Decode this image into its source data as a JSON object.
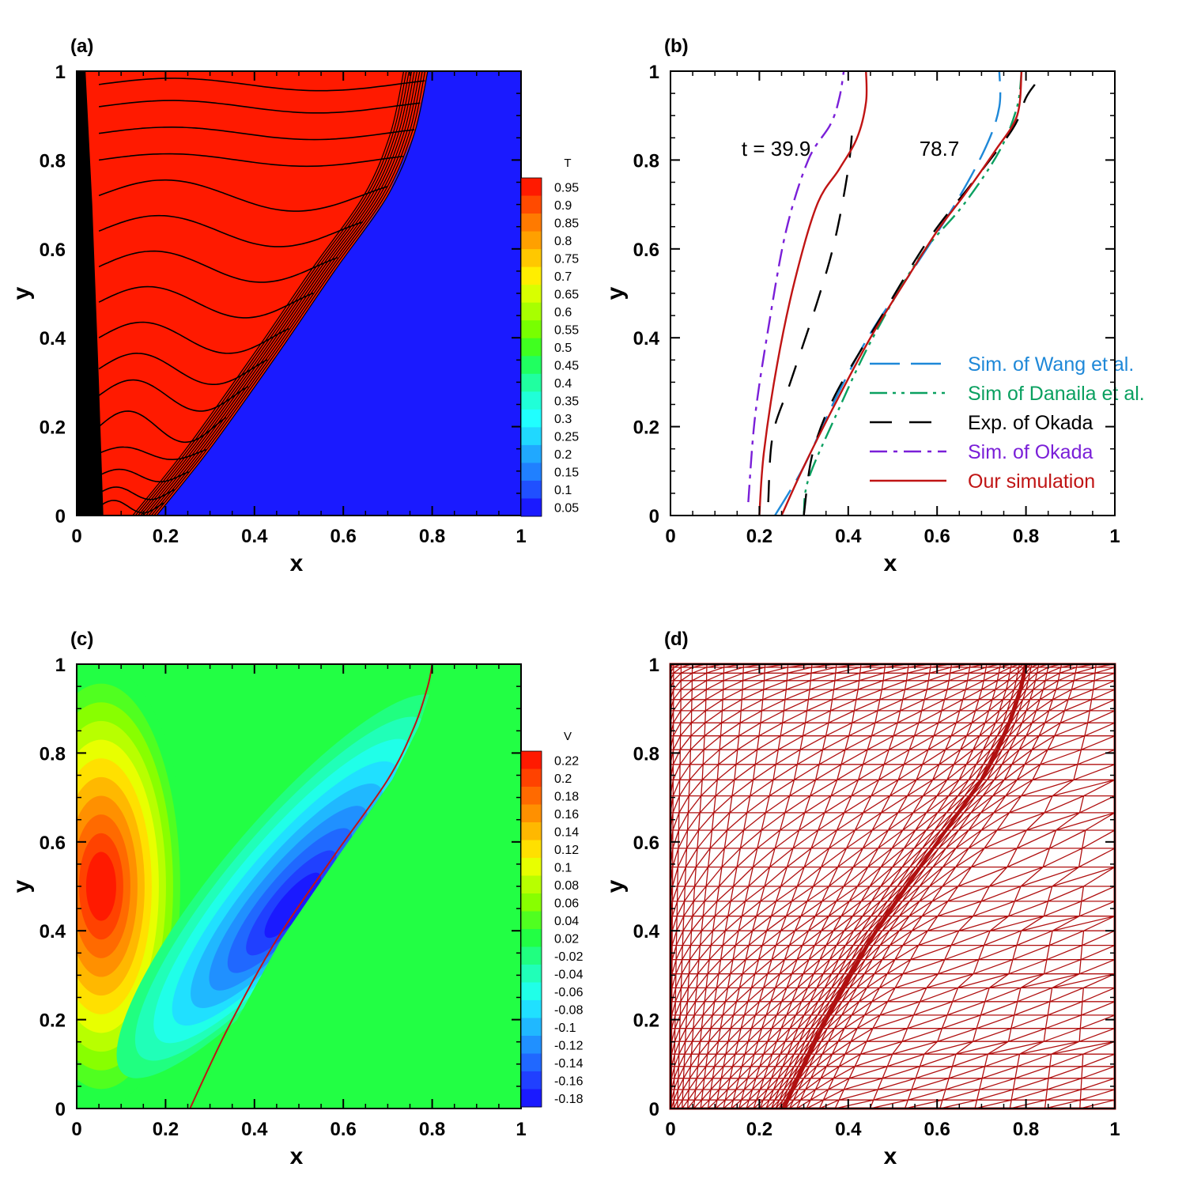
{
  "colors": {
    "wang": "#1e88d8",
    "danaila": "#0aa060",
    "okada_exp": "#000000",
    "okada_sim": "#7a1fd8",
    "ours": "#c01414",
    "mesh": "#b01010",
    "solid_blue": "#1a1aff",
    "field_green": "#22ff44"
  },
  "chart_data": [
    {
      "id": "a",
      "label": "(a)",
      "type": "heatmap",
      "xlabel": "x",
      "ylabel": "y",
      "xlim": [
        0,
        1
      ],
      "ylim": [
        0,
        1
      ],
      "xticks": [
        "0",
        "0.2",
        "0.4",
        "0.6",
        "0.8",
        "1"
      ],
      "yticks": [
        "0",
        "0.2",
        "0.4",
        "0.6",
        "0.8",
        "1"
      ],
      "colorbar": {
        "title": "T",
        "levels": [
          "0.95",
          "0.9",
          "0.85",
          "0.8",
          "0.75",
          "0.7",
          "0.65",
          "0.6",
          "0.55",
          "0.5",
          "0.45",
          "0.4",
          "0.35",
          "0.3",
          "0.25",
          "0.2",
          "0.15",
          "0.1",
          "0.05"
        ],
        "colors": [
          "#ff1a00",
          "#ff4a00",
          "#ff7a00",
          "#ffa000",
          "#ffc800",
          "#ffee00",
          "#d8ff00",
          "#a8ff00",
          "#78ff00",
          "#40ff20",
          "#20ff60",
          "#20ffa0",
          "#20ffd8",
          "#20ffff",
          "#20d8ff",
          "#20a8ff",
          "#2080ff",
          "#2050ff",
          "#1a1aff"
        ]
      },
      "melt_front": [
        [
          0.18,
          0
        ],
        [
          0.3,
          0.15
        ],
        [
          0.45,
          0.36
        ],
        [
          0.58,
          0.55
        ],
        [
          0.7,
          0.72
        ],
        [
          0.76,
          0.86
        ],
        [
          0.79,
          1
        ]
      ],
      "isotherm_heights": [
        0.02,
        0.05,
        0.09,
        0.14,
        0.2,
        0.27,
        0.33,
        0.4,
        0.48,
        0.56,
        0.64,
        0.72,
        0.8,
        0.86,
        0.92,
        0.97
      ]
    },
    {
      "id": "b",
      "label": "(b)",
      "type": "line",
      "xlabel": "x",
      "ylabel": "y",
      "xlim": [
        0,
        1
      ],
      "ylim": [
        0,
        1
      ],
      "xticks": [
        "0",
        "0.2",
        "0.4",
        "0.6",
        "0.8",
        "1"
      ],
      "yticks": [
        "0",
        "0.2",
        "0.4",
        "0.6",
        "0.8",
        "1"
      ],
      "annotations": [
        {
          "text": "t = 39.9",
          "x": 0.16,
          "y": 0.81
        },
        {
          "text": "78.7",
          "x": 0.56,
          "y": 0.81
        }
      ],
      "legend": {
        "position": "bottom-right"
      },
      "series": [
        {
          "name": "Sim. of Wang et al.",
          "style": "wang",
          "curves": [
            [
              [
                0.235,
                0
              ],
              [
                0.3,
                0.11
              ],
              [
                0.37,
                0.26
              ],
              [
                0.45,
                0.41
              ],
              [
                0.55,
                0.56
              ],
              [
                0.64,
                0.7
              ],
              [
                0.71,
                0.83
              ],
              [
                0.74,
                0.92
              ],
              [
                0.74,
                1
              ]
            ]
          ]
        },
        {
          "name": "Sim of Danaila et al.",
          "style": "danaila",
          "curves": [
            [
              [
                0.3,
                0
              ],
              [
                0.31,
                0.08
              ],
              [
                0.37,
                0.22
              ],
              [
                0.45,
                0.39
              ],
              [
                0.56,
                0.58
              ],
              [
                0.66,
                0.7
              ],
              [
                0.74,
                0.82
              ],
              [
                0.78,
                0.92
              ],
              [
                0.79,
                1
              ]
            ]
          ]
        },
        {
          "name": "Exp. of Okada",
          "style": "okada_exp",
          "curves": [
            [
              [
                0.22,
                0.03
              ],
              [
                0.23,
                0.18
              ],
              [
                0.27,
                0.3
              ],
              [
                0.33,
                0.48
              ],
              [
                0.37,
                0.62
              ],
              [
                0.4,
                0.78
              ],
              [
                0.41,
                0.88
              ]
            ],
            [
              [
                0.3,
                0
              ],
              [
                0.32,
                0.14
              ],
              [
                0.37,
                0.27
              ],
              [
                0.47,
                0.44
              ],
              [
                0.58,
                0.62
              ],
              [
                0.68,
                0.75
              ],
              [
                0.77,
                0.87
              ],
              [
                0.8,
                0.94
              ],
              [
                0.82,
                0.97
              ]
            ]
          ]
        },
        {
          "name": "Sim. of Okada",
          "style": "okada_sim",
          "curves": [
            [
              [
                0.175,
                0.03
              ],
              [
                0.19,
                0.22
              ],
              [
                0.22,
                0.42
              ],
              [
                0.26,
                0.64
              ],
              [
                0.31,
                0.8
              ],
              [
                0.36,
                0.88
              ],
              [
                0.38,
                0.94
              ],
              [
                0.39,
                1
              ]
            ]
          ]
        },
        {
          "name": "Our simulation",
          "style": "ours",
          "curves": [
            [
              [
                0.2,
                0
              ],
              [
                0.21,
                0.14
              ],
              [
                0.24,
                0.34
              ],
              [
                0.28,
                0.53
              ],
              [
                0.33,
                0.7
              ],
              [
                0.38,
                0.78
              ],
              [
                0.42,
                0.85
              ],
              [
                0.44,
                0.93
              ],
              [
                0.44,
                1
              ]
            ],
            [
              [
                0.25,
                0
              ],
              [
                0.3,
                0.11
              ],
              [
                0.37,
                0.25
              ],
              [
                0.45,
                0.4
              ],
              [
                0.53,
                0.53
              ],
              [
                0.6,
                0.64
              ],
              [
                0.66,
                0.72
              ],
              [
                0.73,
                0.82
              ],
              [
                0.78,
                0.9
              ],
              [
                0.79,
                1
              ]
            ]
          ]
        }
      ]
    },
    {
      "id": "c",
      "label": "(c)",
      "type": "heatmap",
      "xlabel": "x",
      "ylabel": "y",
      "xlim": [
        0,
        1
      ],
      "ylim": [
        0,
        1
      ],
      "xticks": [
        "0",
        "0.2",
        "0.4",
        "0.6",
        "0.8",
        "1"
      ],
      "yticks": [
        "0",
        "0.2",
        "0.4",
        "0.6",
        "0.8",
        "1"
      ],
      "colorbar": {
        "title": "V",
        "levels": [
          "0.22",
          "0.2",
          "0.18",
          "0.16",
          "0.14",
          "0.12",
          "0.1",
          "0.08",
          "0.06",
          "0.04",
          "0.02",
          "-0.02",
          "-0.04",
          "-0.06",
          "-0.08",
          "-0.1",
          "-0.12",
          "-0.14",
          "-0.16",
          "-0.18"
        ],
        "colors": [
          "#ff1a00",
          "#ff4200",
          "#ff6a00",
          "#ff9000",
          "#ffb800",
          "#ffe000",
          "#e8ff00",
          "#b8ff00",
          "#88ff00",
          "#50ff20",
          "#22ff44",
          "#20ff80",
          "#20ffb8",
          "#20ffe8",
          "#20e0ff",
          "#20b8ff",
          "#2090ff",
          "#2068ff",
          "#2040ff",
          "#1a1aff"
        ]
      },
      "melt_front": [
        [
          0.255,
          0
        ],
        [
          0.34,
          0.18
        ],
        [
          0.45,
          0.38
        ],
        [
          0.58,
          0.57
        ],
        [
          0.7,
          0.74
        ],
        [
          0.76,
          0.86
        ],
        [
          0.79,
          0.95
        ],
        [
          0.8,
          1
        ]
      ]
    },
    {
      "id": "d",
      "label": "(d)",
      "type": "mesh",
      "xlabel": "x",
      "ylabel": "y",
      "xlim": [
        0,
        1
      ],
      "ylim": [
        0,
        1
      ],
      "xticks": [
        "0",
        "0.2",
        "0.4",
        "0.6",
        "0.8",
        "1"
      ],
      "yticks": [
        "0",
        "0.2",
        "0.4",
        "0.6",
        "0.8",
        "1"
      ],
      "melt_front": [
        [
          0.255,
          0
        ],
        [
          0.34,
          0.18
        ],
        [
          0.45,
          0.38
        ],
        [
          0.58,
          0.57
        ],
        [
          0.7,
          0.74
        ],
        [
          0.76,
          0.86
        ],
        [
          0.79,
          0.95
        ],
        [
          0.8,
          1
        ]
      ]
    }
  ]
}
